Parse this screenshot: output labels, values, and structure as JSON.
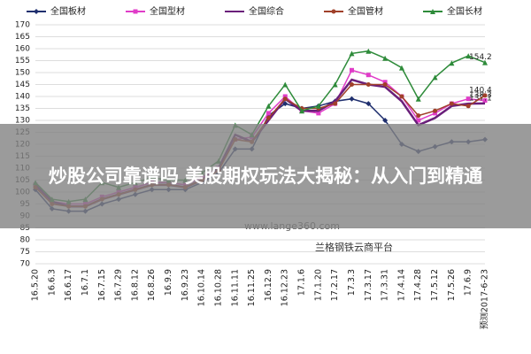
{
  "chart_data": {
    "type": "line",
    "categories": [
      "16.5.20",
      "16.6.3",
      "16.6.17",
      "16.7.1",
      "16.7.15",
      "16.7.29",
      "16.8.12",
      "16.8.26",
      "16.9.9",
      "16.9.23",
      "16.10.14",
      "16.10.28",
      "16.11.11",
      "16.11.25",
      "16.12.9",
      "16.12.23",
      "17.1.6",
      "17.1.20",
      "17.2.17",
      "17.3.3",
      "17.3.17",
      "17.3.31",
      "17.4.14",
      "17.4.28",
      "17.5.12",
      "17.5.26",
      "17.6.9",
      "预测2017-6-23"
    ],
    "series": [
      {
        "name": "全国板材",
        "color": "#1f2f6e",
        "marker": "diamond",
        "values": [
          101,
          93,
          92,
          92,
          95,
          97,
          99,
          101,
          101,
          101,
          104,
          108,
          118,
          118,
          132,
          137,
          135,
          136,
          138,
          139,
          137,
          130,
          120,
          117,
          119,
          121,
          121,
          122
        ]
      },
      {
        "name": "全国型材",
        "color": "#e03cc8",
        "marker": "square",
        "values": [
          103,
          96,
          95,
          95,
          98,
          100,
          102,
          104,
          104,
          103,
          106,
          110,
          122,
          123,
          133,
          140,
          134,
          133,
          137,
          151,
          149,
          146,
          140,
          130,
          133,
          137,
          139,
          138.3
        ],
        "value_labels": [
          null,
          null,
          null,
          null,
          null,
          null,
          null,
          null,
          null,
          null,
          null,
          null,
          null,
          null,
          null,
          null,
          null,
          null,
          null,
          null,
          null,
          null,
          null,
          null,
          null,
          null,
          null,
          "138.3"
        ]
      },
      {
        "name": "全国综合",
        "color": "#6a1f7a",
        "marker": "none",
        "values": [
          103,
          96,
          94,
          94,
          97,
          99,
          101,
          103,
          103,
          102,
          105,
          110,
          124,
          121,
          130,
          139,
          134,
          134,
          138,
          147,
          145,
          144,
          138,
          128,
          131,
          136,
          137,
          137.1
        ],
        "value_labels": [
          null,
          null,
          null,
          null,
          null,
          null,
          null,
          null,
          null,
          null,
          null,
          null,
          null,
          null,
          null,
          null,
          null,
          null,
          null,
          null,
          null,
          null,
          null,
          null,
          null,
          null,
          null,
          "137.1"
        ]
      },
      {
        "name": "全国管材",
        "color": "#a0402a",
        "marker": "circle",
        "values": [
          102,
          95,
          94,
          94,
          97,
          99,
          101,
          103,
          103,
          102,
          105,
          109,
          122,
          121,
          131,
          139,
          135,
          135,
          137,
          145,
          145,
          145,
          140,
          132,
          134,
          137,
          136,
          140.4
        ],
        "value_labels": [
          null,
          null,
          null,
          null,
          null,
          null,
          null,
          null,
          null,
          null,
          null,
          null,
          null,
          null,
          null,
          null,
          null,
          null,
          null,
          null,
          null,
          null,
          null,
          null,
          null,
          null,
          null,
          "140.4"
        ]
      },
      {
        "name": "全国长材",
        "color": "#2e8b3a",
        "marker": "triangle",
        "values": [
          104,
          97,
          96,
          97,
          104,
          102,
          104,
          106,
          105,
          105,
          108,
          113,
          128,
          124,
          136,
          145,
          134,
          136,
          145,
          158,
          159,
          156,
          152,
          139,
          148,
          154,
          157,
          154.2
        ],
        "value_labels": [
          null,
          null,
          null,
          null,
          null,
          null,
          null,
          null,
          null,
          null,
          null,
          null,
          null,
          null,
          null,
          null,
          null,
          null,
          null,
          null,
          null,
          null,
          null,
          null,
          null,
          null,
          null,
          "154.2"
        ]
      }
    ],
    "ylim": [
      70,
      170
    ],
    "yticks": [
      70,
      75,
      80,
      85,
      90,
      95,
      100,
      105,
      110,
      115,
      120,
      125,
      130,
      135,
      140,
      145,
      150,
      155,
      160,
      165,
      170
    ],
    "grid": true,
    "legend": "top",
    "watermark": "www.lange360.com",
    "source": "兰格钢铁云商平台"
  },
  "overlay": {
    "text": "炒股公司靠谱吗 美股期权玩法大揭秘：从入门到精通"
  }
}
